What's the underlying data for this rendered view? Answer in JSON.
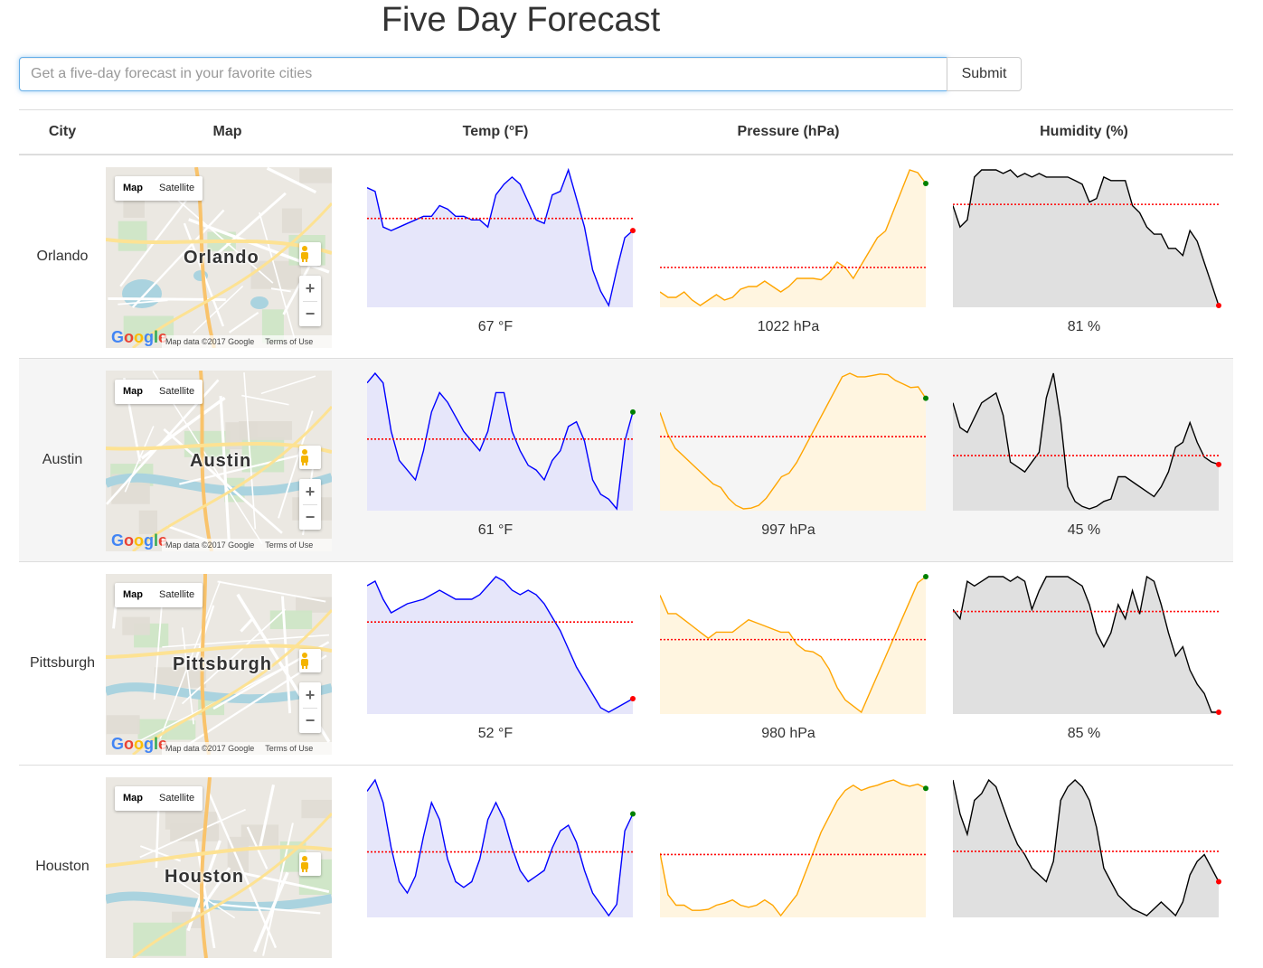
{
  "header": {
    "title": "Five Day Forecast"
  },
  "search": {
    "placeholder": "Get a five-day forecast in your favorite cities",
    "value": "",
    "submit_label": "Submit"
  },
  "table": {
    "columns": [
      "City",
      "Map",
      "Temp (°F)",
      "Pressure (hPa)",
      "Humidity (%)"
    ]
  },
  "map_ui": {
    "map_label": "Map",
    "satellite_label": "Satellite",
    "attribution": "Map data ©2017 Google",
    "terms": "Terms of Use",
    "logo": "Google"
  },
  "colors": {
    "temp": "#0000ff",
    "temp_fill": "#e6e6fa",
    "pressure": "#ffa500",
    "pressure_fill": "#fff5e0",
    "humidity": "#000000",
    "humidity_fill": "#e0e0e0",
    "mean_line": "#ff0000",
    "end_high": "#008000",
    "end_low": "#ff0000"
  },
  "cities": [
    {
      "name": "Orlando",
      "temp_label": "67 °F",
      "pressure_label": "1022 hPa",
      "humidity_label": "81 %",
      "temp": [
        83,
        82,
        72,
        71,
        72,
        73,
        74,
        75,
        75,
        78,
        77,
        75,
        75,
        74,
        74,
        72,
        81,
        84,
        86,
        84,
        79,
        74,
        73,
        81,
        82,
        88,
        80,
        72,
        60,
        54,
        50,
        60,
        69,
        71
      ],
      "pressure": [
        1015,
        1014.6,
        1014.6,
        1015,
        1014.4,
        1014,
        1014.4,
        1014.8,
        1014.4,
        1014.6,
        1015.2,
        1015.4,
        1015.4,
        1015.8,
        1015.4,
        1015,
        1015.4,
        1016,
        1016,
        1016,
        1015.9,
        1016.4,
        1017.2,
        1016.8,
        1016,
        1017,
        1018,
        1019,
        1019.5,
        1021,
        1022.5,
        1024,
        1023.8,
        1023
      ],
      "humidity": [
        88,
        82,
        84,
        96,
        98,
        98,
        98,
        97,
        98,
        96,
        97,
        96,
        97,
        96,
        96,
        96,
        96,
        95,
        94,
        89,
        90,
        96,
        95,
        95,
        95,
        88,
        86,
        82,
        80,
        80,
        76,
        76,
        74,
        81,
        78,
        72,
        66,
        60
      ]
    },
    {
      "name": "Austin",
      "temp_label": "61 °F",
      "pressure_label": "997 hPa",
      "humidity_label": "45 %",
      "temp": [
        84,
        86,
        84,
        74,
        68,
        66,
        64,
        70,
        78,
        82,
        80,
        77,
        74,
        72,
        70,
        74,
        82,
        82,
        74,
        70,
        67,
        66,
        64,
        68,
        70,
        75,
        76,
        72,
        64,
        61,
        60,
        58,
        72,
        78
      ],
      "pressure": [
        1001,
        998,
        996,
        995,
        994,
        993,
        992,
        991,
        990.5,
        989,
        988,
        987.5,
        987.6,
        988,
        989,
        990.5,
        992,
        992.5,
        994,
        996,
        998,
        1000,
        1002,
        1004,
        1006,
        1006.5,
        1006,
        1006,
        1006.2,
        1006.4,
        1006.3,
        1005.5,
        1005,
        1004.5,
        1004.6,
        1003
      ],
      "humidity": [
        80,
        70,
        68,
        74,
        80,
        82,
        84,
        75,
        56,
        54,
        52,
        56,
        60,
        82,
        92,
        73,
        46,
        40,
        38,
        37,
        38,
        40,
        41,
        50,
        50,
        48,
        46,
        44,
        42,
        46,
        52,
        62,
        64,
        72,
        64,
        58,
        56,
        55
      ]
    },
    {
      "name": "Pittsburgh",
      "temp_label": "52 °F",
      "pressure_label": "980 hPa",
      "humidity_label": "85 %",
      "temp": [
        78,
        79,
        75,
        72,
        73,
        74,
        74.5,
        75,
        76,
        77,
        76,
        75,
        75,
        75,
        76,
        78,
        80,
        79,
        77,
        76,
        77,
        76,
        74,
        71,
        68,
        64,
        60,
        57,
        54,
        51,
        50,
        51,
        52,
        53
      ],
      "pressure": [
        1004,
        1001,
        1001,
        1000,
        999,
        998,
        997,
        998,
        998,
        998,
        999,
        1000,
        999.5,
        999,
        998.5,
        998,
        998,
        996,
        995,
        994.8,
        994,
        992,
        989,
        987,
        986,
        985,
        988,
        991,
        994,
        997,
        1000,
        1003,
        1006,
        1007
      ],
      "humidity": [
        82,
        78,
        94,
        92,
        94,
        96,
        96,
        96,
        94,
        96,
        94,
        82,
        90,
        96,
        96,
        96,
        96,
        94,
        92,
        84,
        72,
        66,
        72,
        84,
        78,
        90,
        80,
        96,
        94,
        84,
        72,
        62,
        66,
        56,
        50,
        46,
        38,
        38
      ]
    },
    {
      "name": "Houston",
      "temp_label": "",
      "temp": [
        80,
        82,
        78,
        70,
        64,
        62,
        65,
        72,
        78,
        75,
        68,
        64,
        63,
        64,
        68,
        75,
        78,
        75,
        70,
        66,
        64,
        65,
        66,
        70,
        73,
        74,
        71,
        66,
        62,
        60,
        58,
        60,
        73,
        76
      ],
      "pressure": [
        1000,
        996,
        995,
        995,
        994.5,
        994.5,
        994.6,
        995,
        995.2,
        995.5,
        995,
        994.8,
        995,
        995.5,
        995,
        994,
        995,
        996,
        998,
        1000,
        1002,
        1003.5,
        1005,
        1006,
        1006.5,
        1006,
        1006.3,
        1006.5,
        1006.8,
        1007,
        1006.6,
        1006.4,
        1006.6,
        1006.2
      ],
      "humidity": [
        82,
        72,
        66,
        76,
        78,
        82,
        80,
        74,
        68,
        63,
        60,
        56,
        54,
        52,
        58,
        76,
        80,
        82,
        80,
        76,
        68,
        56,
        52,
        48,
        46,
        44,
        43,
        42,
        44,
        46,
        44,
        42,
        46,
        54,
        58,
        60,
        56,
        52
      ]
    }
  ]
}
